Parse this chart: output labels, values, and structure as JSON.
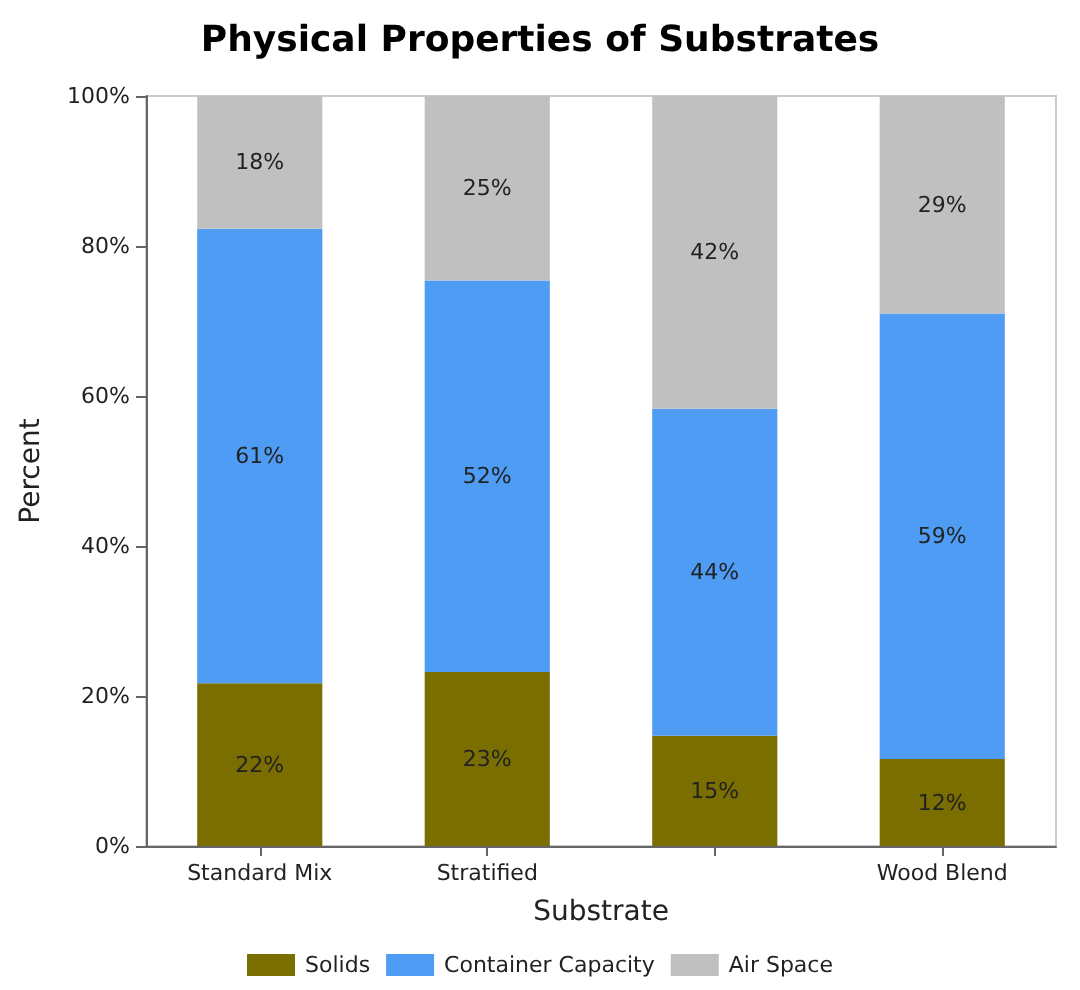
{
  "chart_data": {
    "type": "bar",
    "title": "Physical Properties of Substrates",
    "xlabel": "Substrate",
    "ylabel": "Percent",
    "categories": [
      "Standard Mix",
      "Stratified",
      null,
      "Wood Blend"
    ],
    "stacked": true,
    "legend": "bottom",
    "grid": false,
    "series": [
      {
        "name": "Solids",
        "color": "#7a6e00",
        "values": [
          21.7,
          23.2,
          14.7,
          11.6
        ],
        "value_labels": [
          "22%",
          "23%",
          "15%",
          "12%"
        ]
      },
      {
        "name": "Container Capacity",
        "color": "#4f9cf5",
        "values": [
          60.6,
          52.2,
          43.6,
          59.4
        ],
        "value_labels": [
          "61%",
          "52%",
          "44%",
          "59%"
        ]
      },
      {
        "name": "Air Space",
        "color": "#c0c0c0",
        "values": [
          17.7,
          24.6,
          41.7,
          29.0
        ],
        "value_labels": [
          "18%",
          "25%",
          "42%",
          "29%"
        ]
      }
    ],
    "ylim": [
      0,
      100
    ],
    "yticks": [
      {
        "value": 0,
        "label": "0%"
      },
      {
        "value": 20,
        "label": "20%"
      },
      {
        "value": 40,
        "label": "40%"
      },
      {
        "value": 60,
        "label": "60%"
      },
      {
        "value": 80,
        "label": "80%"
      },
      {
        "value": 100,
        "label": "100%"
      }
    ]
  }
}
